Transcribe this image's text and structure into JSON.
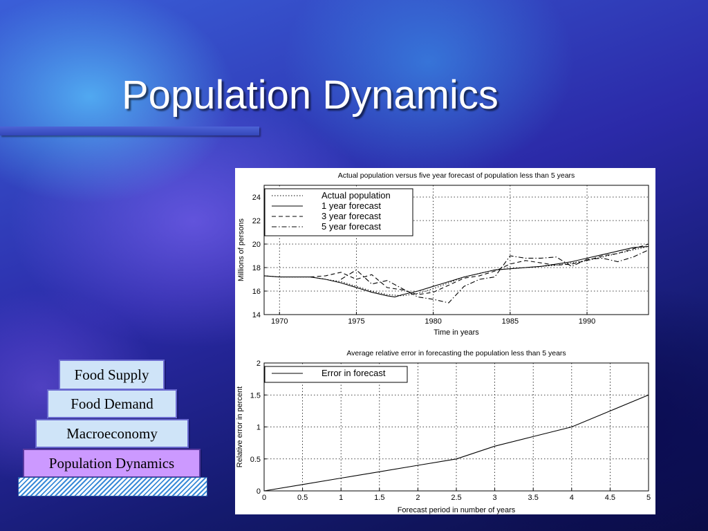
{
  "slide": {
    "title": "Population Dynamics"
  },
  "stack": {
    "items": [
      "Food Supply",
      "Food Demand",
      "Macroeconomy",
      "Population Dynamics"
    ]
  },
  "colors": {
    "stack_box": "#cfe4f8",
    "stack_highlight": "#cc99ff"
  },
  "chart_data": [
    {
      "type": "line",
      "title": "Actual population versus five year forecast of population less than 5 years",
      "xlabel": "Time in years",
      "ylabel": "Millions of persons",
      "xlim": [
        1969,
        1994
      ],
      "ylim": [
        14,
        25
      ],
      "xticks": [
        1970,
        1975,
        1980,
        1985,
        1990
      ],
      "yticks": [
        14,
        16,
        18,
        20,
        22,
        24
      ],
      "grid": true,
      "legend_position": "top-left",
      "series": [
        {
          "name": "Actual population",
          "style": "dotted",
          "x": [
            1969,
            1970,
            1971,
            1972,
            1973,
            1974,
            1975,
            1976,
            1977,
            1978,
            1979,
            1980,
            1981,
            1982,
            1983,
            1984,
            1985,
            1986,
            1987,
            1988,
            1989,
            1990,
            1991,
            1992,
            1993,
            1994
          ],
          "y": [
            17.3,
            17.2,
            17.2,
            17.2,
            17.0,
            16.8,
            16.4,
            16.0,
            15.7,
            15.6,
            15.8,
            16.2,
            16.7,
            17.2,
            17.5,
            17.8,
            17.9,
            18.0,
            18.1,
            18.2,
            18.4,
            18.6,
            18.9,
            19.2,
            19.5,
            19.8
          ]
        },
        {
          "name": "1 year forecast",
          "style": "solid",
          "x": [
            1969,
            1970,
            1971,
            1972,
            1973,
            1974,
            1975,
            1976,
            1977,
            1977.5,
            1978,
            1979,
            1980,
            1981,
            1982,
            1983,
            1984,
            1985,
            1986,
            1987,
            1988,
            1989,
            1990,
            1991,
            1992,
            1993,
            1994
          ],
          "y": [
            17.3,
            17.2,
            17.2,
            17.2,
            17.0,
            16.7,
            16.3,
            15.9,
            15.6,
            15.5,
            15.7,
            16.0,
            16.4,
            16.8,
            17.2,
            17.5,
            17.8,
            17.9,
            18.0,
            18.1,
            18.3,
            18.5,
            18.8,
            19.1,
            19.4,
            19.7,
            19.8
          ]
        },
        {
          "name": "3 year forecast",
          "style": "dashed",
          "x": [
            1972,
            1973,
            1974,
            1975,
            1976,
            1977,
            1978,
            1979,
            1980,
            1981,
            1982,
            1983,
            1984,
            1985,
            1986,
            1987,
            1988,
            1989,
            1990,
            1991,
            1992,
            1993,
            1994
          ],
          "y": [
            17.2,
            17.3,
            17.6,
            17.0,
            17.4,
            16.3,
            16.1,
            15.7,
            15.9,
            16.5,
            17.1,
            17.3,
            17.7,
            18.3,
            18.6,
            18.4,
            18.2,
            18.3,
            18.6,
            19.0,
            19.2,
            19.6,
            20.0
          ]
        },
        {
          "name": "5 year forecast",
          "style": "dashdot",
          "x": [
            1974,
            1975,
            1976,
            1977,
            1978,
            1979,
            1980,
            1981,
            1982,
            1983,
            1984,
            1985,
            1986,
            1987,
            1988,
            1989,
            1990,
            1991,
            1992,
            1993,
            1994
          ],
          "y": [
            17.0,
            17.8,
            16.6,
            16.9,
            16.2,
            15.5,
            15.3,
            15.0,
            16.4,
            17.0,
            17.2,
            19.0,
            18.8,
            18.8,
            18.9,
            18.1,
            18.7,
            18.8,
            18.5,
            18.9,
            19.5
          ]
        }
      ]
    },
    {
      "type": "line",
      "title": "Average relative error in forecasting the population less than 5 years",
      "xlabel": "Forecast period in number of years",
      "ylabel": "Relative error in percent",
      "xlim": [
        0,
        5
      ],
      "ylim": [
        0,
        2
      ],
      "xticks": [
        0,
        0.5,
        1,
        1.5,
        2,
        2.5,
        3,
        3.5,
        4,
        4.5,
        5
      ],
      "yticks": [
        0,
        0.5,
        1,
        1.5,
        2
      ],
      "grid": true,
      "legend_position": "top-left",
      "series": [
        {
          "name": "Error in forecast",
          "style": "solid",
          "x": [
            0,
            0.5,
            1,
            1.5,
            2,
            2.5,
            3,
            3.5,
            4,
            4.5,
            5
          ],
          "y": [
            0.0,
            0.1,
            0.2,
            0.3,
            0.4,
            0.5,
            0.7,
            0.85,
            1.0,
            1.25,
            1.5
          ]
        }
      ]
    }
  ]
}
